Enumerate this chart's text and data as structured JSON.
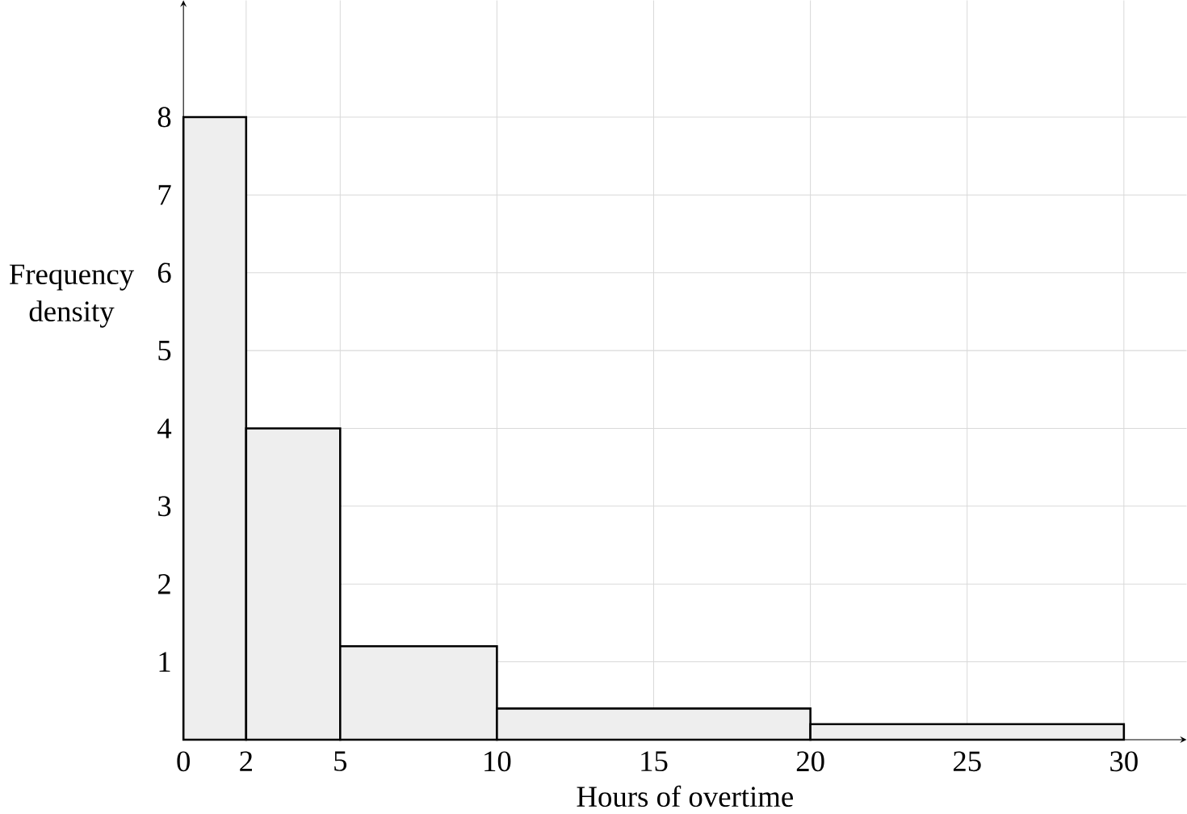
{
  "chart_data": {
    "type": "histogram",
    "xlabel": "Hours of overtime",
    "ylabel": "Frequency density",
    "bins": [
      0,
      2,
      5,
      10,
      20,
      30
    ],
    "values": [
      8,
      4,
      1.2,
      0.4,
      0.2
    ],
    "color": "#eeeeee",
    "xlim": [
      0,
      32
    ],
    "ylim": [
      0,
      9.5
    ],
    "xticks": [
      0,
      2,
      5,
      10,
      15,
      20,
      25,
      30
    ],
    "yticks": [
      1,
      2,
      3,
      4,
      5,
      6,
      7,
      8
    ],
    "grid": true
  }
}
